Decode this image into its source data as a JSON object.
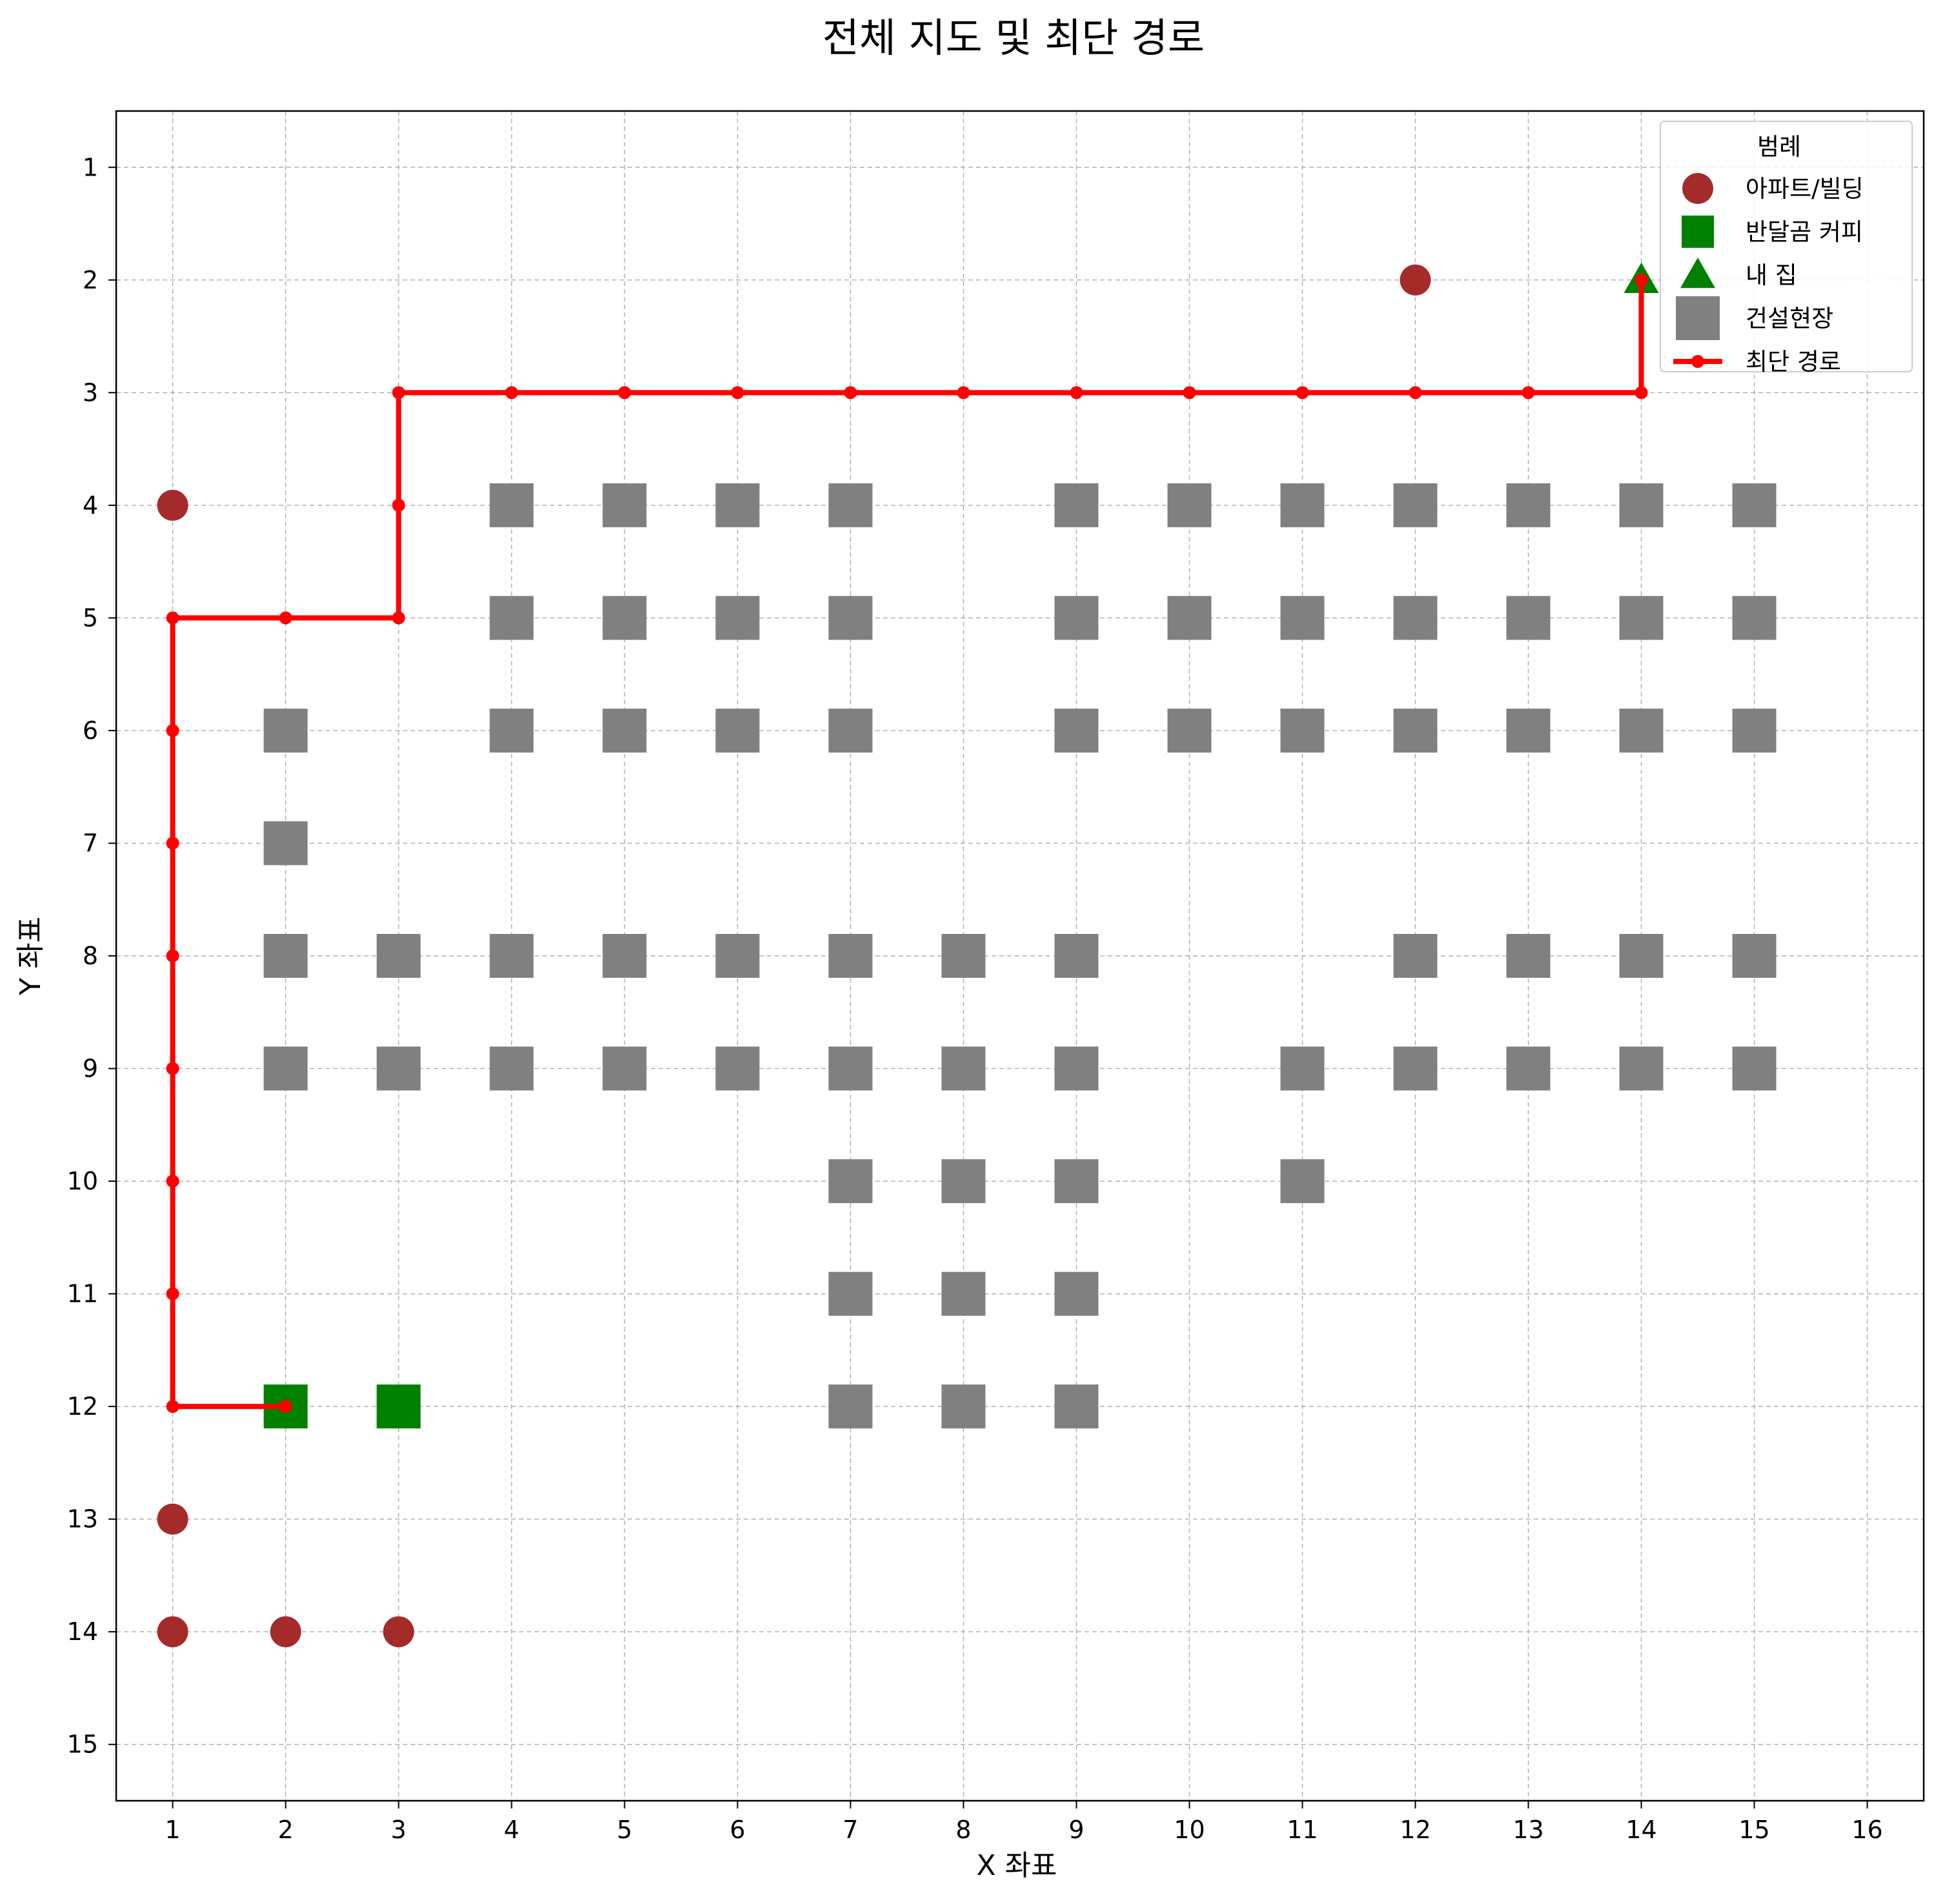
{
  "chart_data": {
    "type": "scatter",
    "title": "전체 지도 및 최단 경로",
    "xlabel": "X 좌표",
    "ylabel": "Y 좌표",
    "xlim": [
      0.5,
      16.5
    ],
    "ylim": [
      15.5,
      0.5
    ],
    "y_inverted": true,
    "x_ticks": [
      1,
      2,
      3,
      4,
      5,
      6,
      7,
      8,
      9,
      10,
      11,
      12,
      13,
      14,
      15,
      16
    ],
    "y_ticks": [
      1,
      2,
      3,
      4,
      5,
      6,
      7,
      8,
      9,
      10,
      11,
      12,
      13,
      14,
      15
    ],
    "grid": true,
    "legend": {
      "title": "범례",
      "placement": "top-right",
      "entries": [
        {
          "label": "아파트/빌딩",
          "marker": "circle",
          "color": "#a52a2a"
        },
        {
          "label": "반달곰 커피",
          "marker": "square",
          "color": "#008000"
        },
        {
          "label": "내 집",
          "marker": "triangle",
          "color": "#008000"
        },
        {
          "label": "건설현장",
          "marker": "square",
          "color": "#808080"
        },
        {
          "label": "최단 경로",
          "marker": "line",
          "color": "#ff0000"
        }
      ]
    },
    "series": [
      {
        "name": "아파트/빌딩",
        "marker": "circle",
        "color": "#a52a2a",
        "points": [
          [
            12,
            2
          ],
          [
            1,
            4
          ],
          [
            1,
            13
          ],
          [
            1,
            14
          ],
          [
            2,
            14
          ],
          [
            3,
            14
          ]
        ]
      },
      {
        "name": "반달곰 커피",
        "marker": "square",
        "color": "#008000",
        "points": [
          [
            2,
            12
          ],
          [
            3,
            12
          ]
        ]
      },
      {
        "name": "내 집",
        "marker": "triangle",
        "color": "#008000",
        "points": [
          [
            14,
            2
          ]
        ]
      },
      {
        "name": "건설현장",
        "marker": "square",
        "color": "#808080",
        "points": [
          [
            4,
            4
          ],
          [
            5,
            4
          ],
          [
            6,
            4
          ],
          [
            7,
            4
          ],
          [
            9,
            4
          ],
          [
            10,
            4
          ],
          [
            11,
            4
          ],
          [
            12,
            4
          ],
          [
            13,
            4
          ],
          [
            14,
            4
          ],
          [
            15,
            4
          ],
          [
            4,
            5
          ],
          [
            5,
            5
          ],
          [
            6,
            5
          ],
          [
            7,
            5
          ],
          [
            9,
            5
          ],
          [
            10,
            5
          ],
          [
            11,
            5
          ],
          [
            12,
            5
          ],
          [
            13,
            5
          ],
          [
            14,
            5
          ],
          [
            15,
            5
          ],
          [
            2,
            6
          ],
          [
            4,
            6
          ],
          [
            5,
            6
          ],
          [
            6,
            6
          ],
          [
            7,
            6
          ],
          [
            9,
            6
          ],
          [
            10,
            6
          ],
          [
            11,
            6
          ],
          [
            12,
            6
          ],
          [
            13,
            6
          ],
          [
            14,
            6
          ],
          [
            15,
            6
          ],
          [
            2,
            7
          ],
          [
            2,
            8
          ],
          [
            3,
            8
          ],
          [
            4,
            8
          ],
          [
            5,
            8
          ],
          [
            6,
            8
          ],
          [
            7,
            8
          ],
          [
            8,
            8
          ],
          [
            9,
            8
          ],
          [
            12,
            8
          ],
          [
            13,
            8
          ],
          [
            14,
            8
          ],
          [
            15,
            8
          ],
          [
            2,
            9
          ],
          [
            3,
            9
          ],
          [
            4,
            9
          ],
          [
            5,
            9
          ],
          [
            6,
            9
          ],
          [
            7,
            9
          ],
          [
            8,
            9
          ],
          [
            9,
            9
          ],
          [
            11,
            9
          ],
          [
            12,
            9
          ],
          [
            13,
            9
          ],
          [
            14,
            9
          ],
          [
            15,
            9
          ],
          [
            7,
            10
          ],
          [
            8,
            10
          ],
          [
            9,
            10
          ],
          [
            11,
            10
          ],
          [
            7,
            11
          ],
          [
            8,
            11
          ],
          [
            9,
            11
          ],
          [
            7,
            12
          ],
          [
            8,
            12
          ],
          [
            9,
            12
          ]
        ]
      },
      {
        "name": "최단 경로",
        "marker": "line",
        "color": "#ff0000",
        "points": [
          [
            2,
            12
          ],
          [
            1,
            12
          ],
          [
            1,
            11
          ],
          [
            1,
            10
          ],
          [
            1,
            9
          ],
          [
            1,
            8
          ],
          [
            1,
            7
          ],
          [
            1,
            6
          ],
          [
            1,
            5
          ],
          [
            2,
            5
          ],
          [
            3,
            5
          ],
          [
            3,
            4
          ],
          [
            3,
            3
          ],
          [
            4,
            3
          ],
          [
            5,
            3
          ],
          [
            6,
            3
          ],
          [
            7,
            3
          ],
          [
            8,
            3
          ],
          [
            9,
            3
          ],
          [
            10,
            3
          ],
          [
            11,
            3
          ],
          [
            12,
            3
          ],
          [
            13,
            3
          ],
          [
            14,
            3
          ],
          [
            14,
            2
          ]
        ]
      }
    ]
  }
}
